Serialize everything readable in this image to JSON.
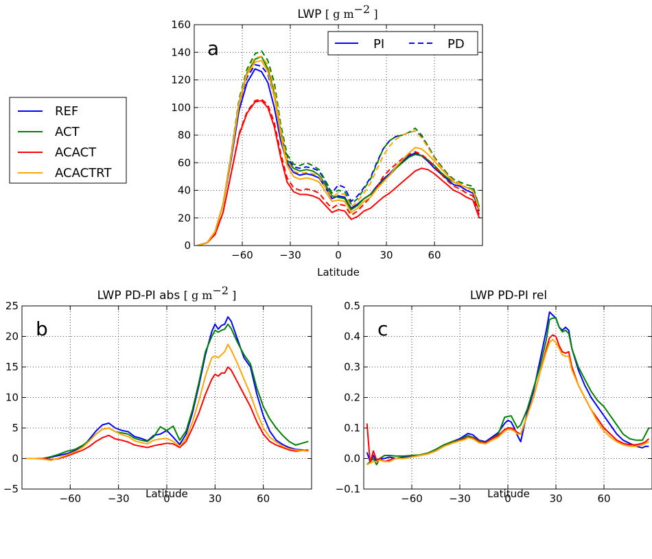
{
  "colors": {
    "REF": "#0000ff",
    "ACT": "#008000",
    "ACACT": "#ff0000",
    "ACACTRT": "#ffa500"
  },
  "legend_models": {
    "entries": [
      {
        "name": "REF",
        "color": "#0000ff"
      },
      {
        "name": "ACT",
        "color": "#008000"
      },
      {
        "name": "ACACT",
        "color": "#ff0000"
      },
      {
        "name": "ACACTRT",
        "color": "#ffa500"
      }
    ]
  },
  "legend_styles": {
    "pi_label": "PI",
    "pd_label": "PD"
  },
  "chart_data": [
    {
      "id": "a",
      "type": "line",
      "letter": "a",
      "title_text": "LWP",
      "title_unit": "[ g m",
      "title_exp": "−2",
      "title_close": "]",
      "xlabel": "Latitude",
      "ylabel": "",
      "xlim": [
        -90,
        90
      ],
      "ylim": [
        0,
        160
      ],
      "xticks": [
        -60,
        -30,
        0,
        30,
        60
      ],
      "xtick_labels": [
        "−60",
        "−30",
        "0",
        "30",
        "60"
      ],
      "yticks": [
        0,
        20,
        40,
        60,
        80,
        100,
        120,
        140,
        160
      ],
      "ytick_labels": [
        "0",
        "20",
        "40",
        "60",
        "80",
        "100",
        "120",
        "140",
        "160"
      ],
      "grid": true,
      "legend": "top-right",
      "x": [
        -88,
        -82,
        -77,
        -72,
        -67,
        -62,
        -57,
        -52,
        -48,
        -44,
        -40,
        -36,
        -32,
        -28,
        -24,
        -20,
        -16,
        -12,
        -8,
        -4,
        0,
        4,
        8,
        12,
        16,
        20,
        24,
        28,
        32,
        36,
        40,
        44,
        48,
        52,
        56,
        60,
        64,
        68,
        72,
        76,
        80,
        84,
        88
      ],
      "series": [
        {
          "name": "REF PI",
          "model": "REF",
          "style": "solid",
          "values": [
            0,
            2,
            10,
            30,
            62,
            98,
            118,
            128,
            126,
            118,
            100,
            76,
            60,
            53,
            51,
            52,
            51,
            49,
            42,
            34,
            36,
            35,
            27,
            30,
            34,
            37,
            43,
            48,
            52,
            57,
            61,
            65,
            67,
            65,
            61,
            56,
            52,
            48,
            44,
            43,
            40,
            38,
            25
          ]
        },
        {
          "name": "REF PD",
          "model": "REF",
          "style": "dash",
          "values": [
            0,
            2,
            10,
            30,
            63,
            102,
            122,
            131,
            130,
            124,
            108,
            82,
            64,
            57,
            56,
            57,
            56,
            54,
            46,
            38,
            44,
            42,
            32,
            36,
            42,
            49,
            60,
            70,
            76,
            79,
            80,
            82,
            83,
            79,
            72,
            64,
            58,
            52,
            47,
            45,
            42,
            40,
            26
          ]
        },
        {
          "name": "ACT PI",
          "model": "ACT",
          "style": "solid",
          "values": [
            0,
            2,
            10,
            30,
            65,
            103,
            125,
            135,
            137,
            128,
            110,
            82,
            62,
            56,
            54,
            55,
            54,
            51,
            44,
            36,
            35,
            34,
            26,
            29,
            34,
            37,
            42,
            47,
            51,
            56,
            60,
            64,
            66,
            65,
            62,
            58,
            53,
            49,
            46,
            44,
            42,
            41,
            28
          ]
        },
        {
          "name": "ACT PD",
          "model": "ACT",
          "style": "dash",
          "values": [
            0,
            2,
            10,
            30,
            66,
            106,
            128,
            139,
            141,
            134,
            118,
            88,
            66,
            59,
            58,
            60,
            58,
            55,
            47,
            38,
            40,
            39,
            30,
            34,
            41,
            48,
            59,
            70,
            76,
            79,
            80,
            82,
            85,
            80,
            72,
            64,
            58,
            52,
            48,
            46,
            44,
            43,
            28
          ]
        },
        {
          "name": "ACACT PI",
          "model": "ACACT",
          "style": "solid",
          "values": [
            0,
            2,
            8,
            24,
            52,
            80,
            96,
            104,
            105,
            100,
            86,
            64,
            46,
            39,
            37,
            37,
            36,
            34,
            29,
            24,
            26,
            25,
            19,
            21,
            25,
            27,
            31,
            35,
            38,
            42,
            46,
            50,
            54,
            56,
            55,
            52,
            48,
            44,
            40,
            38,
            35,
            33,
            20
          ]
        },
        {
          "name": "ACACT PD",
          "model": "ACACT",
          "style": "dash",
          "values": [
            0,
            2,
            8,
            24,
            52,
            81,
            97,
            105,
            106,
            102,
            89,
            67,
            49,
            42,
            40,
            41,
            40,
            38,
            32,
            27,
            30,
            29,
            22,
            25,
            30,
            35,
            42,
            50,
            55,
            59,
            63,
            66,
            68,
            66,
            62,
            57,
            52,
            47,
            43,
            41,
            38,
            36,
            22
          ]
        },
        {
          "name": "ACACTRT PI",
          "model": "ACACTRT",
          "style": "solid",
          "values": [
            0,
            2,
            10,
            30,
            64,
            102,
            124,
            133,
            134,
            126,
            108,
            80,
            58,
            50,
            48,
            49,
            48,
            46,
            39,
            32,
            33,
            32,
            24,
            27,
            32,
            35,
            41,
            46,
            51,
            57,
            62,
            67,
            71,
            70,
            66,
            61,
            56,
            51,
            46,
            44,
            42,
            40,
            26
          ]
        },
        {
          "name": "ACACTRT PD",
          "model": "ACACTRT",
          "style": "dash",
          "values": [
            0,
            2,
            10,
            30,
            65,
            104,
            126,
            136,
            137,
            131,
            114,
            85,
            62,
            54,
            52,
            53,
            52,
            50,
            42,
            35,
            38,
            37,
            28,
            32,
            38,
            45,
            55,
            65,
            72,
            77,
            80,
            82,
            83,
            78,
            71,
            63,
            57,
            51,
            47,
            45,
            42,
            40,
            26
          ]
        }
      ]
    },
    {
      "id": "b",
      "type": "line",
      "letter": "b",
      "title_text": "LWP PD-PI abs",
      "title_unit": "[ g m",
      "title_exp": "−2",
      "title_close": "]",
      "xlabel": "Latitude",
      "ylabel": "",
      "xlim": [
        -90,
        90
      ],
      "ylim": [
        -5,
        25
      ],
      "xticks": [
        -60,
        -30,
        0,
        30,
        60
      ],
      "xtick_labels": [
        "−60",
        "−30",
        "0",
        "30",
        "60"
      ],
      "yticks": [
        -5,
        0,
        5,
        10,
        15,
        20,
        25
      ],
      "ytick_labels": [
        "−5",
        "0",
        "5",
        "10",
        "15",
        "20",
        "25"
      ],
      "grid": true,
      "x": [
        -88,
        -82,
        -77,
        -72,
        -67,
        -62,
        -57,
        -52,
        -48,
        -44,
        -40,
        -36,
        -32,
        -28,
        -24,
        -20,
        -16,
        -12,
        -8,
        -4,
        0,
        4,
        8,
        12,
        16,
        20,
        24,
        28,
        30,
        32,
        34,
        36,
        38,
        40,
        44,
        48,
        52,
        56,
        60,
        64,
        68,
        72,
        76,
        80,
        84,
        88
      ],
      "series": [
        {
          "name": "REF",
          "model": "REF",
          "values": [
            0,
            0,
            0,
            0.2,
            0.5,
            0.8,
            1.3,
            2.0,
            3.2,
            4.5,
            5.5,
            5.8,
            5.0,
            4.6,
            4.4,
            3.6,
            3.3,
            2.9,
            3.8,
            4.0,
            4.6,
            3.5,
            2.3,
            4.0,
            7.5,
            12.0,
            17.0,
            20.8,
            22.0,
            21.2,
            21.8,
            22.0,
            23.2,
            22.5,
            19.5,
            16.5,
            15.0,
            10.5,
            7.0,
            4.5,
            3.0,
            2.3,
            1.8,
            1.5,
            1.4,
            1.2
          ]
        },
        {
          "name": "ACT",
          "model": "ACT",
          "values": [
            0,
            0,
            0,
            0.3,
            0.7,
            1.2,
            1.5,
            2.2,
            3.0,
            4.0,
            4.8,
            5.0,
            4.4,
            4.2,
            4.0,
            3.3,
            3.0,
            2.8,
            3.6,
            5.2,
            4.6,
            5.3,
            3.0,
            4.5,
            8.0,
            12.5,
            17.5,
            20.0,
            21.0,
            20.7,
            21.0,
            21.2,
            22.0,
            21.3,
            19.0,
            17.0,
            15.5,
            11.5,
            8.5,
            6.5,
            5.0,
            3.8,
            2.8,
            2.2,
            2.5,
            2.8
          ]
        },
        {
          "name": "ACACT",
          "model": "ACACT",
          "values": [
            0,
            0,
            0,
            -0.2,
            0,
            0.4,
            0.9,
            1.4,
            2.0,
            2.8,
            3.4,
            3.8,
            3.2,
            3.0,
            2.7,
            2.2,
            2.0,
            1.8,
            2.1,
            2.3,
            2.5,
            2.4,
            1.8,
            2.8,
            5.0,
            7.5,
            10.5,
            13.0,
            13.8,
            13.5,
            14.0,
            14.0,
            15.0,
            14.5,
            12.5,
            10.5,
            8.5,
            6.0,
            4.0,
            2.8,
            2.2,
            1.8,
            1.4,
            1.2,
            1.3,
            1.4
          ]
        },
        {
          "name": "ACACTRT",
          "model": "ACACTRT",
          "values": [
            0,
            0,
            -0.1,
            -0.3,
            0.1,
            0.6,
            1.1,
            1.9,
            2.9,
            4.0,
            4.8,
            5.0,
            4.4,
            3.9,
            3.6,
            2.9,
            2.6,
            2.4,
            3.0,
            3.2,
            3.3,
            2.8,
            2.0,
            3.3,
            6.0,
            9.5,
            13.5,
            16.5,
            16.8,
            16.5,
            17.0,
            17.5,
            18.7,
            17.8,
            15.5,
            13.0,
            10.5,
            7.5,
            5.0,
            3.5,
            2.7,
            2.0,
            1.6,
            1.4,
            1.3,
            1.2
          ]
        }
      ]
    },
    {
      "id": "c",
      "type": "line",
      "letter": "c",
      "title_text": "LWP PD-PI rel",
      "xlabel": "Latitude",
      "ylabel": "",
      "xlim": [
        -90,
        90
      ],
      "ylim": [
        -0.1,
        0.5
      ],
      "xticks": [
        -60,
        -30,
        0,
        30,
        60
      ],
      "xtick_labels": [
        "−60",
        "−30",
        "0",
        "30",
        "60"
      ],
      "yticks": [
        -0.1,
        0.0,
        0.1,
        0.2,
        0.3,
        0.4,
        0.5
      ],
      "ytick_labels": [
        "−0.1",
        "0.0",
        "0.1",
        "0.2",
        "0.3",
        "0.4",
        "0.5"
      ],
      "grid": true,
      "x": [
        -88,
        -86,
        -84,
        -82,
        -80,
        -77,
        -74,
        -70,
        -65,
        -60,
        -55,
        -50,
        -45,
        -40,
        -35,
        -30,
        -27,
        -25,
        -22,
        -18,
        -14,
        -10,
        -6,
        -2,
        0,
        2,
        4,
        6,
        8,
        12,
        16,
        20,
        24,
        26,
        28,
        30,
        32,
        34,
        36,
        38,
        40,
        44,
        48,
        52,
        56,
        60,
        64,
        68,
        72,
        76,
        80,
        84,
        86,
        88
      ],
      "series": [
        {
          "name": "REF",
          "model": "REF",
          "values": [
            0.02,
            -0.01,
            0.01,
            -0.01,
            0.0,
            0.0,
            0.005,
            0.0,
            0.005,
            0.008,
            0.01,
            0.015,
            0.025,
            0.04,
            0.055,
            0.065,
            0.075,
            0.082,
            0.078,
            0.06,
            0.055,
            0.07,
            0.085,
            0.115,
            0.125,
            0.12,
            0.1,
            0.075,
            0.055,
            0.15,
            0.22,
            0.32,
            0.42,
            0.48,
            0.47,
            0.46,
            0.43,
            0.42,
            0.43,
            0.42,
            0.36,
            0.29,
            0.24,
            0.2,
            0.17,
            0.14,
            0.11,
            0.08,
            0.06,
            0.05,
            0.04,
            0.035,
            0.04,
            0.04
          ]
        },
        {
          "name": "ACT",
          "model": "ACT",
          "values": [
            -0.02,
            -0.01,
            0.0,
            -0.02,
            0.0,
            0.01,
            0.01,
            0.008,
            0.008,
            0.01,
            0.012,
            0.018,
            0.03,
            0.045,
            0.055,
            0.062,
            0.07,
            0.075,
            0.07,
            0.058,
            0.052,
            0.065,
            0.08,
            0.135,
            0.138,
            0.14,
            0.12,
            0.1,
            0.11,
            0.16,
            0.23,
            0.3,
            0.39,
            0.455,
            0.46,
            0.46,
            0.43,
            0.415,
            0.42,
            0.41,
            0.36,
            0.3,
            0.26,
            0.22,
            0.19,
            0.17,
            0.14,
            0.11,
            0.08,
            0.065,
            0.06,
            0.06,
            0.08,
            0.1
          ]
        },
        {
          "name": "ACACT",
          "model": "ACACT",
          "values": [
            0.115,
            -0.015,
            0.025,
            -0.005,
            0.0,
            -0.01,
            -0.005,
            0.0,
            0.0,
            0.005,
            0.01,
            0.015,
            0.025,
            0.04,
            0.05,
            0.06,
            0.065,
            0.07,
            0.068,
            0.055,
            0.05,
            0.065,
            0.075,
            0.095,
            0.1,
            0.1,
            0.095,
            0.085,
            0.08,
            0.14,
            0.2,
            0.28,
            0.36,
            0.395,
            0.405,
            0.4,
            0.37,
            0.35,
            0.345,
            0.35,
            0.3,
            0.24,
            0.2,
            0.16,
            0.13,
            0.1,
            0.08,
            0.06,
            0.05,
            0.045,
            0.045,
            0.05,
            0.055,
            0.065
          ]
        },
        {
          "name": "ACACTRT",
          "model": "ACACTRT",
          "values": [
            -0.02,
            -0.015,
            -0.01,
            -0.01,
            -0.005,
            -0.01,
            -0.01,
            0.0,
            0.0,
            0.005,
            0.01,
            0.015,
            0.025,
            0.04,
            0.05,
            0.058,
            0.062,
            0.068,
            0.065,
            0.052,
            0.048,
            0.06,
            0.07,
            0.09,
            0.095,
            0.095,
            0.09,
            0.08,
            0.08,
            0.14,
            0.2,
            0.28,
            0.35,
            0.38,
            0.39,
            0.38,
            0.36,
            0.34,
            0.335,
            0.335,
            0.29,
            0.24,
            0.2,
            0.16,
            0.12,
            0.09,
            0.07,
            0.055,
            0.045,
            0.04,
            0.04,
            0.045,
            0.05,
            0.055
          ]
        }
      ]
    }
  ]
}
